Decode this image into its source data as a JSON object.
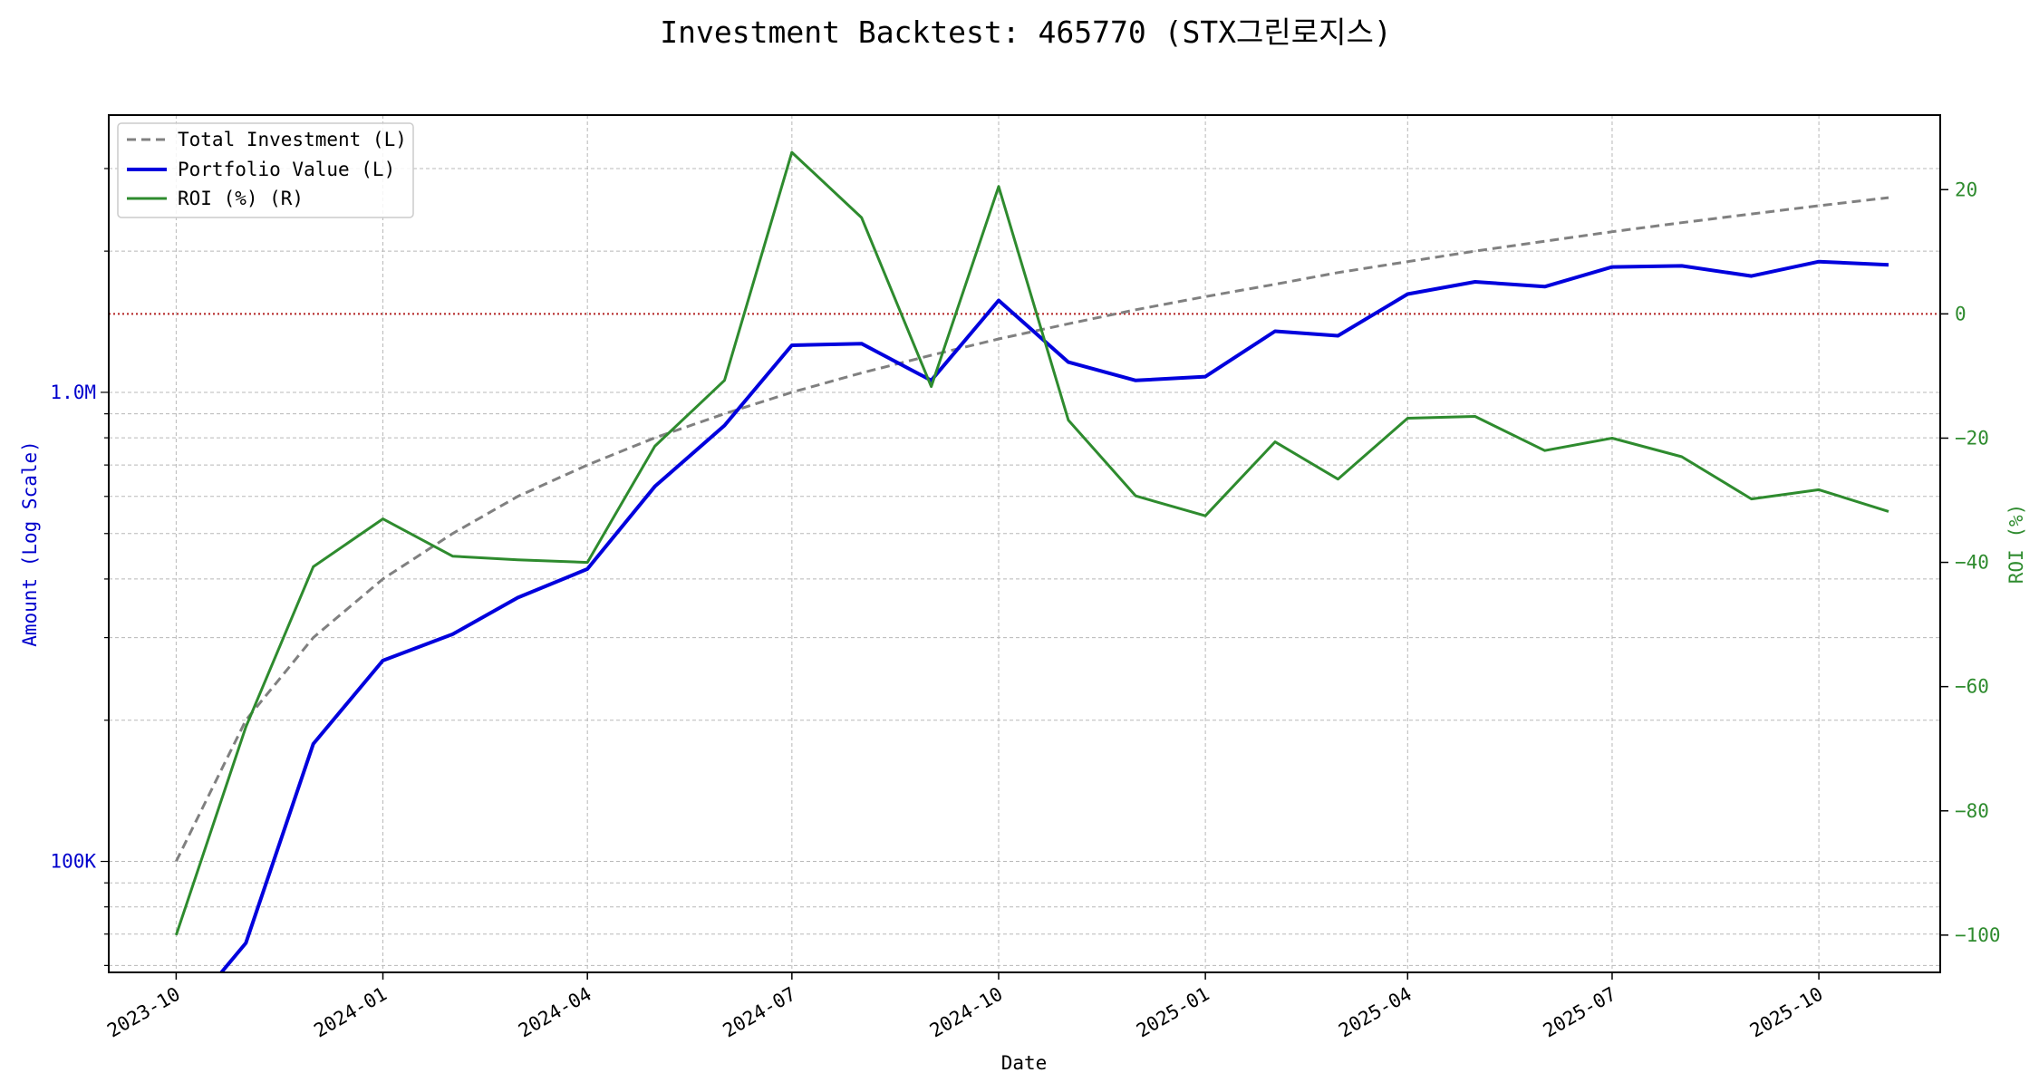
{
  "chart_data": {
    "type": "line",
    "title": "Investment Backtest: 465770 (STX그린로지스)",
    "xlabel": "Date",
    "ylabel_left": "Amount (Log Scale)",
    "ylabel_right": "ROI (%)",
    "y_left_scale": "log",
    "y_left_range": [
      58000,
      3900000
    ],
    "y_right_range": [
      -106,
      32
    ],
    "x_range": [
      "2023-09-01",
      "2025-11-24"
    ],
    "x_ticks": [
      "2023-10",
      "2024-01",
      "2024-04",
      "2024-07",
      "2024-10",
      "2025-01",
      "2025-04",
      "2025-07",
      "2025-10"
    ],
    "y_left_ticks": [
      {
        "value": 100000,
        "label": "100K"
      },
      {
        "value": 1000000,
        "label": "1.0M"
      }
    ],
    "y_right_ticks": [
      {
        "value": 20,
        "label": "20"
      },
      {
        "value": 0,
        "label": "0"
      },
      {
        "value": -20,
        "label": "−20"
      },
      {
        "value": -40,
        "label": "−40"
      },
      {
        "value": -60,
        "label": "−60"
      },
      {
        "value": -80,
        "label": "−80"
      },
      {
        "value": -100,
        "label": "−100"
      }
    ],
    "reference_line": {
      "axis": "right",
      "value": 0,
      "color": "#b22222",
      "style": "dotted"
    },
    "grid": true,
    "legend": "top-left",
    "x": [
      "2023-10-01",
      "2023-11-01",
      "2023-12-01",
      "2024-01-01",
      "2024-02-01",
      "2024-03-01",
      "2024-04-01",
      "2024-05-01",
      "2024-06-01",
      "2024-07-01",
      "2024-08-01",
      "2024-09-01",
      "2024-10-01",
      "2024-11-01",
      "2024-12-01",
      "2025-01-01",
      "2025-02-01",
      "2025-03-01",
      "2025-04-01",
      "2025-05-01",
      "2025-06-01",
      "2025-07-01",
      "2025-08-01",
      "2025-09-01",
      "2025-10-01",
      "2025-11-01"
    ],
    "series": [
      {
        "name": "Total Investment (L)",
        "axis": "left",
        "color": "#808080",
        "style": "dashed",
        "values": [
          100000,
          200000,
          300000,
          400000,
          500000,
          600000,
          700000,
          800000,
          900000,
          1000000,
          1100000,
          1200000,
          1300000,
          1400000,
          1500000,
          1600000,
          1700000,
          1800000,
          1900000,
          2000000,
          2100000,
          2200000,
          2300000,
          2400000,
          2500000,
          2600000
        ]
      },
      {
        "name": "Portfolio Value (L)",
        "axis": "left",
        "color": "#0000dd",
        "style": "solid",
        "values": [
          0,
          67000,
          178000,
          268000,
          305000,
          365000,
          420000,
          630000,
          850000,
          1260000,
          1270000,
          1060000,
          1570000,
          1160000,
          1060000,
          1080000,
          1350000,
          1320000,
          1620000,
          1720000,
          1680000,
          1850000,
          1860000,
          1770000,
          1900000,
          1870000
        ]
      },
      {
        "name": "ROI (%) (R)",
        "axis": "right",
        "color": "#2e8b2e",
        "style": "solid",
        "values": [
          -100,
          -66.5,
          -40.7,
          -33.0,
          -39.0,
          -39.6,
          -40.0,
          -21.3,
          -10.7,
          26.0,
          15.5,
          -11.7,
          20.5,
          -17.1,
          -29.3,
          -32.5,
          -20.6,
          -26.6,
          -16.8,
          -16.5,
          -22.0,
          -20.0,
          -23.0,
          -29.8,
          -28.3,
          -31.8
        ]
      }
    ]
  }
}
